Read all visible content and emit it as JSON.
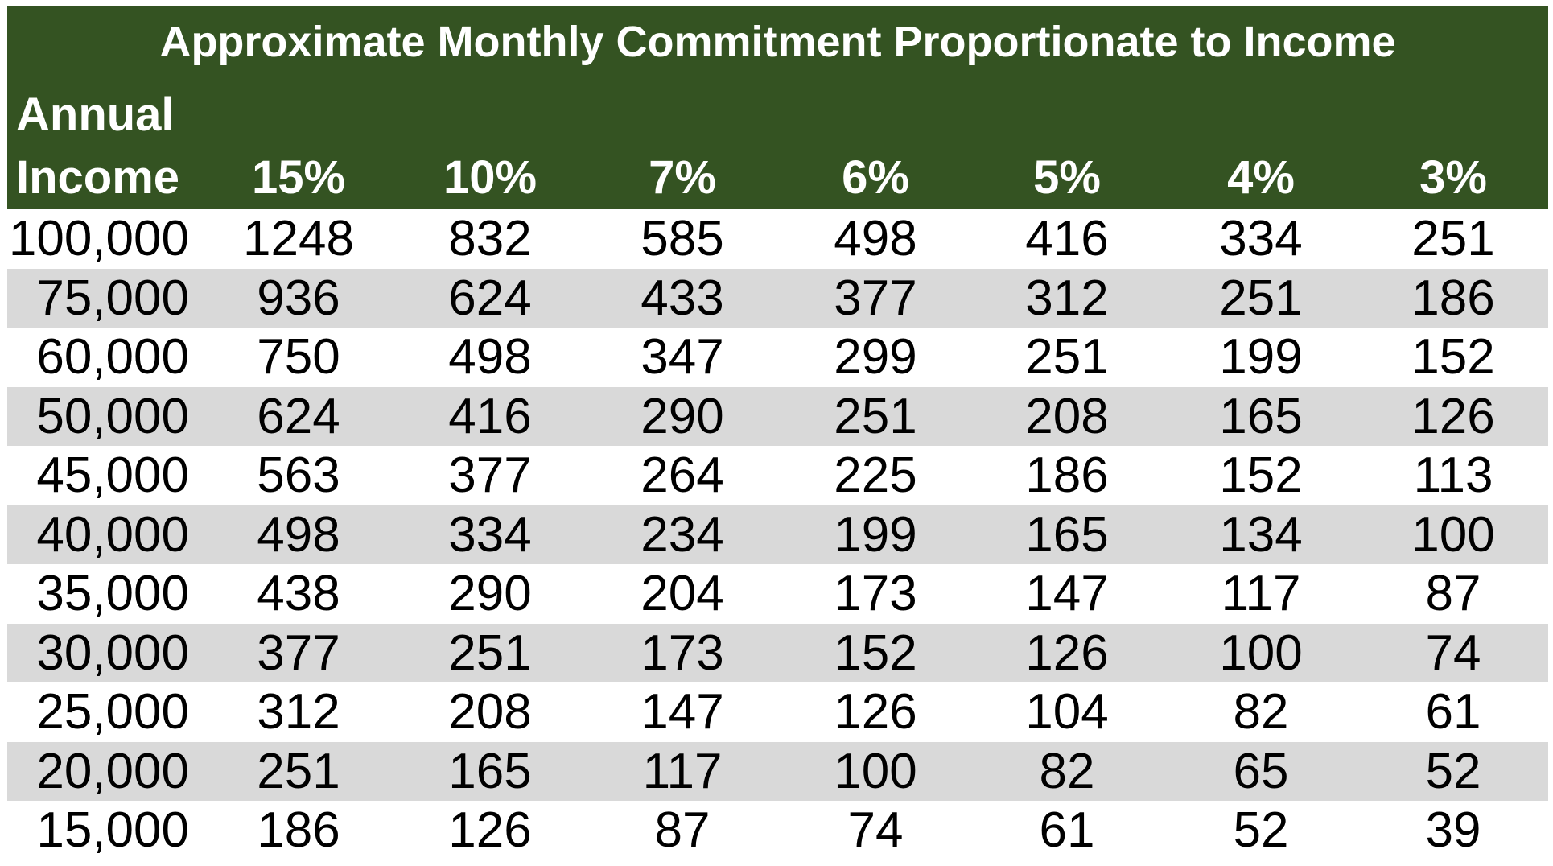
{
  "header": {
    "title": "Approximate Monthly Commitment Proportionate to Income"
  },
  "table": {
    "columns": [
      "Annual Income",
      "15%",
      "10%",
      "7%",
      "6%",
      "5%",
      "4%",
      "3%"
    ],
    "rows": [
      [
        "100,000",
        "1248",
        "832",
        "585",
        "498",
        "416",
        "334",
        "251"
      ],
      [
        "75,000",
        "936",
        "624",
        "433",
        "377",
        "312",
        "251",
        "186"
      ],
      [
        "60,000",
        "750",
        "498",
        "347",
        "299",
        "251",
        "199",
        "152"
      ],
      [
        "50,000",
        "624",
        "416",
        "290",
        "251",
        "208",
        "165",
        "126"
      ],
      [
        "45,000",
        "563",
        "377",
        "264",
        "225",
        "186",
        "152",
        "113"
      ],
      [
        "40,000",
        "498",
        "334",
        "234",
        "199",
        "165",
        "134",
        "100"
      ],
      [
        "35,000",
        "438",
        "290",
        "204",
        "173",
        "147",
        "117",
        "87"
      ],
      [
        "30,000",
        "377",
        "251",
        "173",
        "152",
        "126",
        "100",
        "74"
      ],
      [
        "25,000",
        "312",
        "208",
        "147",
        "126",
        "104",
        "82",
        "61"
      ],
      [
        "20,000",
        "251",
        "165",
        "117",
        "100",
        "82",
        "65",
        "52"
      ],
      [
        "15,000",
        "186",
        "126",
        "87",
        "74",
        "61",
        "52",
        "39"
      ]
    ]
  }
}
